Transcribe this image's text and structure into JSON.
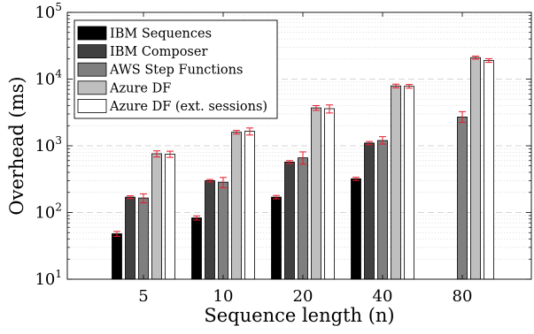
{
  "chart_data": {
    "type": "bar",
    "xlabel": "Sequence length (n)",
    "ylabel": "Overhead (ms)",
    "yscale": "log",
    "ylim": [
      10,
      100000
    ],
    "y_ticks": [
      {
        "value": 10,
        "base": "10",
        "exp": "1"
      },
      {
        "value": 100,
        "base": "10",
        "exp": "2"
      },
      {
        "value": 1000,
        "base": "10",
        "exp": "3"
      },
      {
        "value": 10000,
        "base": "10",
        "exp": "4"
      },
      {
        "value": 100000,
        "base": "10",
        "exp": "5"
      }
    ],
    "grid": "major dashed + minor dotted (y)",
    "legend_position": "top-left",
    "categories": [
      "5",
      "10",
      "20",
      "40",
      "80"
    ],
    "series": [
      {
        "name": "IBM Sequences",
        "color": "#000000",
        "values": [
          48,
          83,
          170,
          320,
          null
        ],
        "error_low": [
          44,
          77,
          160,
          303,
          null
        ],
        "error_high": [
          52,
          89,
          180,
          337,
          null
        ]
      },
      {
        "name": "IBM Composer",
        "color": "#404040",
        "values": [
          170,
          300,
          570,
          1100,
          null
        ],
        "error_low": [
          162,
          287,
          540,
          1040,
          null
        ],
        "error_high": [
          178,
          313,
          600,
          1160,
          null
        ]
      },
      {
        "name": "AWS Step Functions",
        "color": "#7f7f7f",
        "values": [
          165,
          285,
          660,
          1200,
          2700
        ],
        "error_low": [
          140,
          235,
          530,
          1060,
          2250
        ],
        "error_high": [
          190,
          335,
          810,
          1370,
          3250
        ]
      },
      {
        "name": "Azure DF",
        "color": "#bfbfbf",
        "values": [
          760,
          1600,
          3700,
          7900,
          21000
        ],
        "error_low": [
          680,
          1500,
          3400,
          7400,
          19900
        ],
        "error_high": [
          840,
          1700,
          4000,
          8400,
          22100
        ]
      },
      {
        "name": "Azure DF (ext. sessions)",
        "color": "#ffffff",
        "values": [
          750,
          1650,
          3600,
          7800,
          19000
        ],
        "error_low": [
          670,
          1450,
          3100,
          7300,
          17800
        ],
        "error_high": [
          830,
          1850,
          4100,
          8300,
          20200
        ]
      }
    ],
    "error_bar_color": "#e8182a"
  }
}
